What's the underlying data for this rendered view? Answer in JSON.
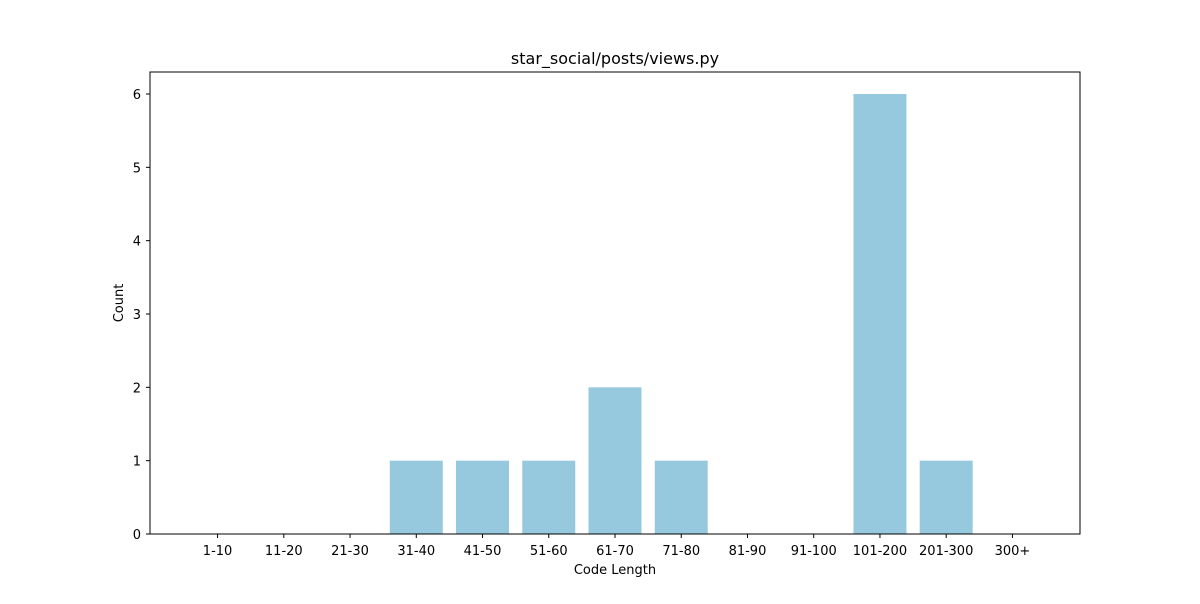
{
  "chart_data": {
    "type": "bar",
    "title": "star_social/posts/views.py",
    "xlabel": "Code Length",
    "ylabel": "Count",
    "categories": [
      "1-10",
      "11-20",
      "21-30",
      "31-40",
      "41-50",
      "51-60",
      "61-70",
      "71-80",
      "81-90",
      "91-100",
      "101-200",
      "201-300",
      "300+"
    ],
    "values": [
      0,
      0,
      0,
      1,
      1,
      1,
      2,
      1,
      0,
      0,
      6,
      1,
      0
    ],
    "ylim": [
      0,
      6.3
    ],
    "yticks": [
      0,
      1,
      2,
      3,
      4,
      5,
      6
    ],
    "bar_color": "#96c9de",
    "grid": false,
    "legend": "none"
  }
}
